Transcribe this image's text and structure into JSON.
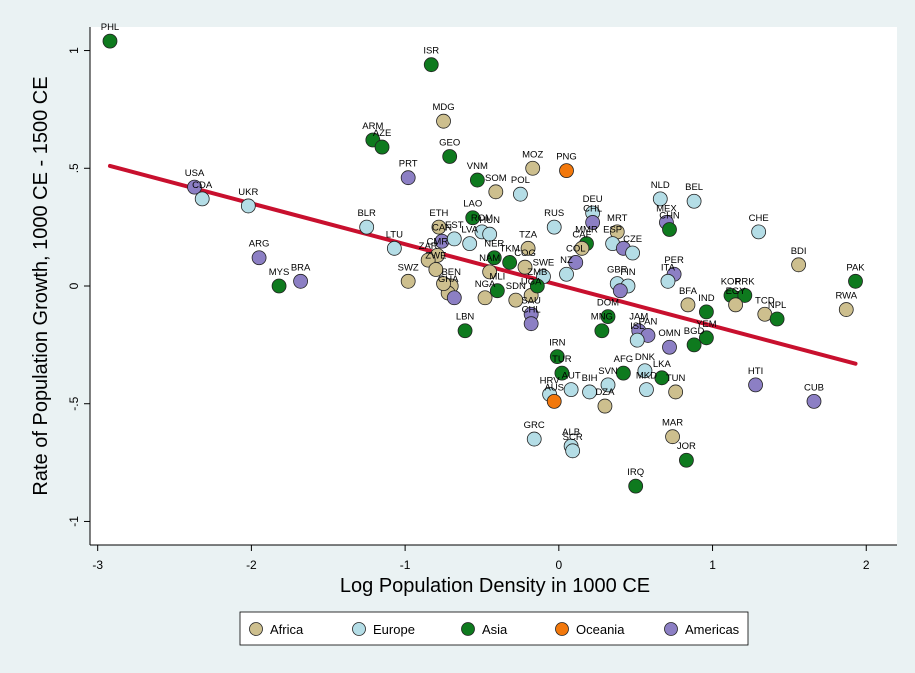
{
  "chart_data": {
    "type": "scatter",
    "xlabel": "Log Population Density in 1000 CE",
    "ylabel": "Rate of Population Growth, 1000 CE - 1500 CE",
    "xlim": [
      -3.05,
      2.2
    ],
    "ylim": [
      -1.1,
      1.1
    ],
    "x_ticks": [
      -3,
      -2,
      -1,
      0,
      1,
      2
    ],
    "x_tick_labels": [
      "-3",
      "-2",
      "-1",
      "0",
      "1",
      "2"
    ],
    "y_ticks": [
      -1,
      -0.5,
      0,
      0.5,
      1
    ],
    "y_tick_labels": [
      "-1",
      "-.5",
      "0",
      ".5",
      "1"
    ],
    "grid": false,
    "legend_position": "bottom",
    "fit_line": {
      "x": [
        -2.92,
        1.93
      ],
      "y": [
        0.51,
        -0.33
      ],
      "color": "#C8102E"
    },
    "categories": [
      {
        "name": "Africa",
        "color": "#CDBF8E"
      },
      {
        "name": "Europe",
        "color": "#B4DDE6"
      },
      {
        "name": "Asia",
        "color": "#0E7A1E"
      },
      {
        "name": "Oceania",
        "color": "#F2780C"
      },
      {
        "name": "Americas",
        "color": "#8C7FC4"
      }
    ],
    "points": [
      {
        "label": "PHL",
        "group": "Asia",
        "x": -2.92,
        "y": 1.04
      },
      {
        "label": "ISR",
        "group": "Asia",
        "x": -0.83,
        "y": 0.94
      },
      {
        "label": "MDG",
        "group": "Africa",
        "x": -0.75,
        "y": 0.7
      },
      {
        "label": "ARM",
        "group": "Asia",
        "x": -1.21,
        "y": 0.62
      },
      {
        "label": "AZE",
        "group": "Asia",
        "x": -1.15,
        "y": 0.59
      },
      {
        "label": "GEO",
        "group": "Asia",
        "x": -0.71,
        "y": 0.55
      },
      {
        "label": "PRT",
        "group": "Americas",
        "x": -0.98,
        "y": 0.46
      },
      {
        "label": "VNM",
        "group": "Asia",
        "x": -0.53,
        "y": 0.45
      },
      {
        "label": "MOZ",
        "group": "Africa",
        "x": -0.17,
        "y": 0.5
      },
      {
        "label": "PNG",
        "group": "Oceania",
        "x": 0.05,
        "y": 0.49
      },
      {
        "label": "SOM",
        "group": "Africa",
        "x": -0.41,
        "y": 0.4
      },
      {
        "label": "POL",
        "group": "Europe",
        "x": -0.25,
        "y": 0.39
      },
      {
        "label": "USA",
        "group": "Americas",
        "x": -2.37,
        "y": 0.42
      },
      {
        "label": "CDA",
        "group": "Europe",
        "x": -2.32,
        "y": 0.37
      },
      {
        "label": "UKR",
        "group": "Europe",
        "x": -2.02,
        "y": 0.34
      },
      {
        "label": "BLR",
        "group": "Europe",
        "x": -1.25,
        "y": 0.25
      },
      {
        "label": "LTU",
        "group": "Europe",
        "x": -1.07,
        "y": 0.16
      },
      {
        "label": "ETH",
        "group": "Africa",
        "x": -0.78,
        "y": 0.25
      },
      {
        "label": "CAN",
        "group": "Americas",
        "x": -0.76,
        "y": 0.19
      },
      {
        "label": "LAO",
        "group": "Asia",
        "x": -0.56,
        "y": 0.29
      },
      {
        "label": "EST",
        "group": "Europe",
        "x": -0.68,
        "y": 0.2
      },
      {
        "label": "ROM",
        "group": "Europe",
        "x": -0.5,
        "y": 0.23
      },
      {
        "label": "HUN",
        "group": "Europe",
        "x": -0.45,
        "y": 0.22
      },
      {
        "label": "LVA",
        "group": "Europe",
        "x": -0.58,
        "y": 0.18
      },
      {
        "label": "CMR",
        "group": "Africa",
        "x": -0.79,
        "y": 0.13
      },
      {
        "label": "ZAR",
        "group": "Africa",
        "x": -0.85,
        "y": 0.11
      },
      {
        "label": "RUS",
        "group": "Europe",
        "x": -0.03,
        "y": 0.25
      },
      {
        "label": "TZA",
        "group": "Africa",
        "x": -0.2,
        "y": 0.16
      },
      {
        "label": "NER",
        "group": "Asia",
        "x": -0.42,
        "y": 0.12
      },
      {
        "label": "TKM",
        "group": "Asia",
        "x": -0.32,
        "y": 0.1
      },
      {
        "label": "COG",
        "group": "Africa",
        "x": -0.22,
        "y": 0.08
      },
      {
        "label": "NAM",
        "group": "Africa",
        "x": -0.45,
        "y": 0.06
      },
      {
        "label": "SWE",
        "group": "Europe",
        "x": -0.1,
        "y": 0.04
      },
      {
        "label": "NZ",
        "group": "Europe",
        "x": 0.05,
        "y": 0.05
      },
      {
        "label": "ARG",
        "group": "Americas",
        "x": -1.95,
        "y": 0.12
      },
      {
        "label": "MYS",
        "group": "Asia",
        "x": -1.82,
        "y": 0.0
      },
      {
        "label": "BRA",
        "group": "Americas",
        "x": -1.68,
        "y": 0.02
      },
      {
        "label": "SWZ",
        "group": "Africa",
        "x": -0.98,
        "y": 0.02
      },
      {
        "label": "ZWE",
        "group": "Africa",
        "x": -0.8,
        "y": 0.07
      },
      {
        "label": "BEN",
        "group": "Africa",
        "x": -0.7,
        "y": 0.0
      },
      {
        "label": "GHA",
        "group": "Africa",
        "x": -0.72,
        "y": -0.03
      },
      {
        "label": "SEN",
        "group": "Americas",
        "x": -0.68,
        "y": -0.05
      },
      {
        "label": "GIN",
        "group": "Africa",
        "x": -0.75,
        "y": 0.01
      },
      {
        "label": "NGA",
        "group": "Africa",
        "x": -0.48,
        "y": -0.05
      },
      {
        "label": "MLI",
        "group": "Asia",
        "x": -0.4,
        "y": -0.02
      },
      {
        "label": "SDN",
        "group": "Africa",
        "x": -0.28,
        "y": -0.06
      },
      {
        "label": "UGA",
        "group": "Africa",
        "x": -0.18,
        "y": -0.04
      },
      {
        "label": "ZMB",
        "group": "Asia",
        "x": -0.14,
        "y": 0.0
      },
      {
        "label": "SAU",
        "group": "Americas",
        "x": -0.18,
        "y": -0.12
      },
      {
        "label": "CHL",
        "group": "Americas",
        "x": -0.18,
        "y": -0.16
      },
      {
        "label": "LBN",
        "group": "Asia",
        "x": -0.61,
        "y": -0.19
      },
      {
        "label": "DEU",
        "group": "Europe",
        "x": 0.22,
        "y": 0.31
      },
      {
        "label": "CHL2",
        "group": "Americas",
        "x": 0.22,
        "y": 0.27
      },
      {
        "label": "MMR",
        "group": "Asia",
        "x": 0.18,
        "y": 0.18
      },
      {
        "label": "CAF",
        "group": "Africa",
        "x": 0.15,
        "y": 0.16
      },
      {
        "label": "COL",
        "group": "Americas",
        "x": 0.11,
        "y": 0.1
      },
      {
        "label": "MRT",
        "group": "Africa",
        "x": 0.38,
        "y": 0.23
      },
      {
        "label": "ESP",
        "group": "Europe",
        "x": 0.35,
        "y": 0.18
      },
      {
        "label": "BRA2",
        "group": "Americas",
        "x": 0.42,
        "y": 0.16
      },
      {
        "label": "CZE",
        "group": "Europe",
        "x": 0.48,
        "y": 0.14
      },
      {
        "label": "NLD",
        "group": "Europe",
        "x": 0.66,
        "y": 0.37
      },
      {
        "label": "BEL",
        "group": "Europe",
        "x": 0.88,
        "y": 0.36
      },
      {
        "label": "MEX",
        "group": "Americas",
        "x": 0.7,
        "y": 0.27
      },
      {
        "label": "CHN",
        "group": "Asia",
        "x": 0.72,
        "y": 0.24
      },
      {
        "label": "CHE",
        "group": "Europe",
        "x": 1.3,
        "y": 0.23
      },
      {
        "label": "BDI",
        "group": "Africa",
        "x": 1.56,
        "y": 0.09
      },
      {
        "label": "PER",
        "group": "Americas",
        "x": 0.75,
        "y": 0.05
      },
      {
        "label": "ITA",
        "group": "Europe",
        "x": 0.71,
        "y": 0.02
      },
      {
        "label": "GBR",
        "group": "Europe",
        "x": 0.38,
        "y": 0.01
      },
      {
        "label": "FIN",
        "group": "Europe",
        "x": 0.45,
        "y": 0.0
      },
      {
        "label": "PRT2",
        "group": "Americas",
        "x": 0.4,
        "y": -0.02
      },
      {
        "label": "KOR",
        "group": "Asia",
        "x": 1.12,
        "y": -0.04
      },
      {
        "label": "PRK",
        "group": "Asia",
        "x": 1.21,
        "y": -0.04
      },
      {
        "label": "EGY",
        "group": "Africa",
        "x": 1.15,
        "y": -0.08
      },
      {
        "label": "TCD",
        "group": "Africa",
        "x": 1.34,
        "y": -0.12
      },
      {
        "label": "NPL",
        "group": "Asia",
        "x": 1.42,
        "y": -0.14
      },
      {
        "label": "BFA",
        "group": "Africa",
        "x": 0.84,
        "y": -0.08
      },
      {
        "label": "PAK",
        "group": "Asia",
        "x": 1.93,
        "y": 0.02
      },
      {
        "label": "RWA",
        "group": "Africa",
        "x": 1.87,
        "y": -0.1
      },
      {
        "label": "IND",
        "group": "Asia",
        "x": 0.96,
        "y": -0.11
      },
      {
        "label": "YEM",
        "group": "Asia",
        "x": 0.96,
        "y": -0.22
      },
      {
        "label": "BGD",
        "group": "Asia",
        "x": 0.88,
        "y": -0.25
      },
      {
        "label": "OMN",
        "group": "Americas",
        "x": 0.72,
        "y": -0.26
      },
      {
        "label": "JAM",
        "group": "Americas",
        "x": 0.52,
        "y": -0.19
      },
      {
        "label": "PAN",
        "group": "Americas",
        "x": 0.58,
        "y": -0.21
      },
      {
        "label": "MNG",
        "group": "Asia",
        "x": 0.28,
        "y": -0.19
      },
      {
        "label": "DOM",
        "group": "Asia",
        "x": 0.32,
        "y": -0.13
      },
      {
        "label": "ISL",
        "group": "Europe",
        "x": 0.51,
        "y": -0.23
      },
      {
        "label": "IRN",
        "group": "Asia",
        "x": -0.01,
        "y": -0.3
      },
      {
        "label": "TUR",
        "group": "Asia",
        "x": 0.02,
        "y": -0.37
      },
      {
        "label": "AFG",
        "group": "Asia",
        "x": 0.42,
        "y": -0.37
      },
      {
        "label": "DNK",
        "group": "Europe",
        "x": 0.56,
        "y": -0.36
      },
      {
        "label": "LKA",
        "group": "Asia",
        "x": 0.67,
        "y": -0.39
      },
      {
        "label": "MKD",
        "group": "Europe",
        "x": 0.57,
        "y": -0.44
      },
      {
        "label": "TUN",
        "group": "Africa",
        "x": 0.76,
        "y": -0.45
      },
      {
        "label": "SVN",
        "group": "Europe",
        "x": 0.32,
        "y": -0.42
      },
      {
        "label": "BIH",
        "group": "Europe",
        "x": 0.2,
        "y": -0.45
      },
      {
        "label": "AUT",
        "group": "Europe",
        "x": 0.08,
        "y": -0.44
      },
      {
        "label": "HRV",
        "group": "Europe",
        "x": -0.06,
        "y": -0.46
      },
      {
        "label": "AUS",
        "group": "Oceania",
        "x": -0.03,
        "y": -0.49
      },
      {
        "label": "DZA",
        "group": "Africa",
        "x": 0.3,
        "y": -0.51
      },
      {
        "label": "HTI",
        "group": "Americas",
        "x": 1.28,
        "y": -0.42
      },
      {
        "label": "CUB",
        "group": "Americas",
        "x": 1.66,
        "y": -0.49
      },
      {
        "label": "GRC",
        "group": "Europe",
        "x": -0.16,
        "y": -0.65
      },
      {
        "label": "ALB",
        "group": "Europe",
        "x": 0.08,
        "y": -0.68
      },
      {
        "label": "SCR",
        "group": "Europe",
        "x": 0.09,
        "y": -0.7
      },
      {
        "label": "MAR",
        "group": "Africa",
        "x": 0.74,
        "y": -0.64
      },
      {
        "label": "JOR",
        "group": "Asia",
        "x": 0.83,
        "y": -0.74
      },
      {
        "label": "IRQ",
        "group": "Asia",
        "x": 0.5,
        "y": -0.85
      }
    ]
  },
  "display_labels": {
    "CHL2": "CHL",
    "BRA2": "",
    "PRT2": "",
    "SEN": "",
    "GIN": ""
  }
}
